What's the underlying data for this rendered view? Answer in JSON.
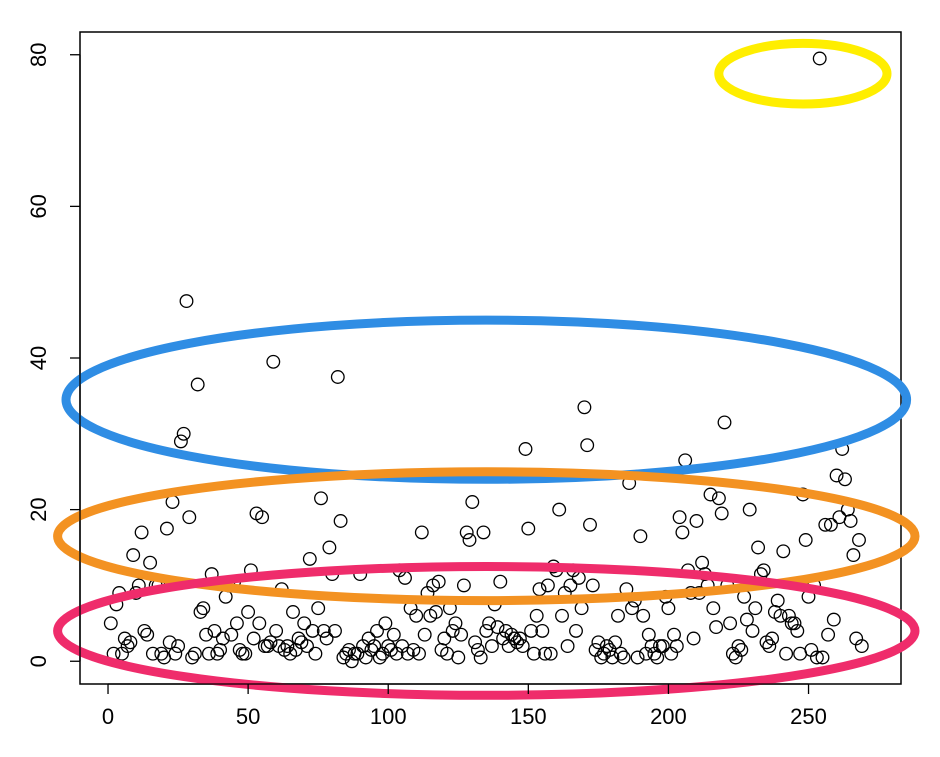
{
  "chart_data": {
    "type": "scatter",
    "title": "",
    "xlabel": "",
    "ylabel": "",
    "xlim": [
      -10,
      283
    ],
    "ylim": [
      -3,
      83
    ],
    "xticks": [
      0,
      50,
      100,
      150,
      200,
      250
    ],
    "xtick_labels": [
      "0",
      "50",
      "100",
      "150",
      "200",
      "250"
    ],
    "yticks": [
      0,
      20,
      40,
      60,
      80
    ],
    "ytick_labels": [
      "0",
      "20",
      "40",
      "60",
      "80"
    ],
    "grid": false,
    "marker": "open-circle",
    "point_color": "#000000",
    "points": [
      [
        1,
        5
      ],
      [
        2,
        1
      ],
      [
        3,
        7.5
      ],
      [
        4,
        9
      ],
      [
        5,
        1
      ],
      [
        6,
        3
      ],
      [
        7,
        2
      ],
      [
        8,
        2.5
      ],
      [
        9,
        14
      ],
      [
        10,
        9
      ],
      [
        11,
        10
      ],
      [
        12,
        17
      ],
      [
        13,
        4
      ],
      [
        14,
        3.5
      ],
      [
        15,
        13
      ],
      [
        16,
        1
      ],
      [
        17,
        10
      ],
      [
        18,
        10
      ],
      [
        19,
        1
      ],
      [
        20,
        0.5
      ],
      [
        21,
        17.5
      ],
      [
        22,
        2.5
      ],
      [
        23,
        21
      ],
      [
        24,
        1
      ],
      [
        25,
        2
      ],
      [
        26,
        29
      ],
      [
        27,
        30
      ],
      [
        28,
        47.5
      ],
      [
        29,
        19
      ],
      [
        30,
        0.5
      ],
      [
        31,
        1
      ],
      [
        32,
        36.5
      ],
      [
        33,
        6.5
      ],
      [
        34,
        7
      ],
      [
        35,
        3.5
      ],
      [
        36,
        1
      ],
      [
        37,
        11.5
      ],
      [
        38,
        4
      ],
      [
        39,
        1
      ],
      [
        40,
        1.5
      ],
      [
        41,
        3
      ],
      [
        42,
        8.5
      ],
      [
        43,
        10
      ],
      [
        44,
        3.5
      ],
      [
        45,
        10.5
      ],
      [
        46,
        5
      ],
      [
        47,
        1.5
      ],
      [
        48,
        1
      ],
      [
        49,
        1
      ],
      [
        50,
        6.5
      ],
      [
        51,
        12
      ],
      [
        52,
        3
      ],
      [
        53,
        19.5
      ],
      [
        54,
        5
      ],
      [
        55,
        19
      ],
      [
        56,
        2
      ],
      [
        57,
        2
      ],
      [
        58,
        2.5
      ],
      [
        59,
        39.5
      ],
      [
        60,
        4
      ],
      [
        61,
        2
      ],
      [
        62,
        9.5
      ],
      [
        63,
        1.5
      ],
      [
        64,
        2
      ],
      [
        65,
        1
      ],
      [
        66,
        6.5
      ],
      [
        67,
        1.5
      ],
      [
        68,
        3
      ],
      [
        69,
        2.5
      ],
      [
        70,
        5
      ],
      [
        71,
        2
      ],
      [
        72,
        13.5
      ],
      [
        73,
        4
      ],
      [
        74,
        1
      ],
      [
        75,
        7
      ],
      [
        76,
        21.5
      ],
      [
        77,
        4
      ],
      [
        78,
        3
      ],
      [
        79,
        15
      ],
      [
        80,
        11.5
      ],
      [
        81,
        4
      ],
      [
        82,
        37.5
      ],
      [
        83,
        18.5
      ],
      [
        84,
        0.5
      ],
      [
        85,
        1
      ],
      [
        86,
        1.5
      ],
      [
        87,
        0
      ],
      [
        88,
        1
      ],
      [
        89,
        1
      ],
      [
        90,
        11.5
      ],
      [
        91,
        2
      ],
      [
        92,
        0.5
      ],
      [
        93,
        3
      ],
      [
        94,
        1.5
      ],
      [
        95,
        2
      ],
      [
        96,
        4
      ],
      [
        97,
        0.5
      ],
      [
        98,
        1
      ],
      [
        99,
        5
      ],
      [
        100,
        2
      ],
      [
        101,
        1.5
      ],
      [
        102,
        3.5
      ],
      [
        103,
        1
      ],
      [
        104,
        12
      ],
      [
        105,
        2
      ],
      [
        106,
        11
      ],
      [
        107,
        1
      ],
      [
        108,
        7
      ],
      [
        109,
        1.5
      ],
      [
        110,
        6
      ],
      [
        111,
        1
      ],
      [
        112,
        17
      ],
      [
        113,
        3.5
      ],
      [
        114,
        9
      ],
      [
        115,
        6
      ],
      [
        116,
        10
      ],
      [
        117,
        6.5
      ],
      [
        118,
        10.5
      ],
      [
        119,
        1.5
      ],
      [
        120,
        3
      ],
      [
        121,
        1
      ],
      [
        122,
        7
      ],
      [
        123,
        4
      ],
      [
        124,
        5
      ],
      [
        125,
        0.5
      ],
      [
        126,
        3.5
      ],
      [
        127,
        10
      ],
      [
        128,
        17
      ],
      [
        129,
        16
      ],
      [
        130,
        21
      ],
      [
        131,
        2.5
      ],
      [
        132,
        1.5
      ],
      [
        133,
        0.5
      ],
      [
        134,
        17
      ],
      [
        135,
        4
      ],
      [
        136,
        5
      ],
      [
        137,
        2
      ],
      [
        138,
        7.5
      ],
      [
        139,
        4.5
      ],
      [
        140,
        10.5
      ],
      [
        141,
        3
      ],
      [
        142,
        4
      ],
      [
        143,
        2
      ],
      [
        144,
        3.5
      ],
      [
        145,
        3
      ],
      [
        146,
        2.5
      ],
      [
        147,
        3
      ],
      [
        148,
        2
      ],
      [
        149,
        28
      ],
      [
        150,
        17.5
      ],
      [
        151,
        4
      ],
      [
        152,
        1
      ],
      [
        153,
        6
      ],
      [
        154,
        9.5
      ],
      [
        155,
        4
      ],
      [
        156,
        1
      ],
      [
        157,
        10
      ],
      [
        158,
        1
      ],
      [
        159,
        12.5
      ],
      [
        160,
        12
      ],
      [
        161,
        20
      ],
      [
        162,
        6
      ],
      [
        163,
        9
      ],
      [
        164,
        2
      ],
      [
        165,
        10
      ],
      [
        166,
        12
      ],
      [
        167,
        4
      ],
      [
        168,
        11
      ],
      [
        169,
        7
      ],
      [
        170,
        33.5
      ],
      [
        171,
        28.5
      ],
      [
        172,
        18
      ],
      [
        173,
        10
      ],
      [
        174,
        1.5
      ],
      [
        175,
        2.5
      ],
      [
        176,
        0.5
      ],
      [
        177,
        1
      ],
      [
        178,
        2
      ],
      [
        179,
        1.5
      ],
      [
        180,
        0.5
      ],
      [
        181,
        2.5
      ],
      [
        182,
        6
      ],
      [
        183,
        1
      ],
      [
        184,
        0.5
      ],
      [
        185,
        9.5
      ],
      [
        186,
        23.5
      ],
      [
        187,
        7
      ],
      [
        188,
        8
      ],
      [
        189,
        0.5
      ],
      [
        190,
        16.5
      ],
      [
        191,
        6
      ],
      [
        192,
        1
      ],
      [
        193,
        3.5
      ],
      [
        194,
        2
      ],
      [
        195,
        1
      ],
      [
        196,
        0.5
      ],
      [
        197,
        2
      ],
      [
        198,
        2
      ],
      [
        199,
        8.5
      ],
      [
        200,
        7
      ],
      [
        201,
        1
      ],
      [
        202,
        3.5
      ],
      [
        203,
        2
      ],
      [
        204,
        19
      ],
      [
        205,
        17
      ],
      [
        206,
        26.5
      ],
      [
        207,
        12
      ],
      [
        208,
        9
      ],
      [
        209,
        3
      ],
      [
        210,
        18.5
      ],
      [
        211,
        9
      ],
      [
        212,
        13
      ],
      [
        213,
        11.5
      ],
      [
        214,
        10
      ],
      [
        215,
        22
      ],
      [
        216,
        7
      ],
      [
        217,
        4.5
      ],
      [
        218,
        21.5
      ],
      [
        219,
        19.5
      ],
      [
        220,
        31.5
      ],
      [
        221,
        10
      ],
      [
        222,
        5
      ],
      [
        223,
        1
      ],
      [
        224,
        0.5
      ],
      [
        225,
        2
      ],
      [
        226,
        1.5
      ],
      [
        227,
        8.5
      ],
      [
        228,
        5.5
      ],
      [
        229,
        20
      ],
      [
        230,
        4
      ],
      [
        231,
        7
      ],
      [
        232,
        15
      ],
      [
        233,
        11.5
      ],
      [
        234,
        12
      ],
      [
        235,
        2.5
      ],
      [
        236,
        2
      ],
      [
        237,
        3
      ],
      [
        238,
        6.5
      ],
      [
        239,
        8
      ],
      [
        240,
        6
      ],
      [
        241,
        14.5
      ],
      [
        242,
        1
      ],
      [
        243,
        6
      ],
      [
        244,
        5
      ],
      [
        245,
        5
      ],
      [
        246,
        4
      ],
      [
        247,
        1
      ],
      [
        248,
        22
      ],
      [
        249,
        16
      ],
      [
        250,
        8.5
      ],
      [
        251,
        1.5
      ],
      [
        252,
        10
      ],
      [
        253,
        0.5
      ],
      [
        254,
        79.5
      ],
      [
        255,
        0.5
      ],
      [
        256,
        18
      ],
      [
        257,
        3.5
      ],
      [
        258,
        18
      ],
      [
        259,
        5.5
      ],
      [
        260,
        24.5
      ],
      [
        261,
        19
      ],
      [
        262,
        28
      ],
      [
        263,
        24
      ],
      [
        264,
        20
      ],
      [
        265,
        18.5
      ],
      [
        266,
        14
      ],
      [
        267,
        3
      ],
      [
        268,
        16
      ],
      [
        269,
        2
      ]
    ],
    "highlight_ellipses": [
      {
        "color": "#ffee00",
        "center": [
          248,
          77.5
        ],
        "radii": [
          30,
          4
        ]
      },
      {
        "color": "#2f8de4",
        "center": [
          135,
          34.5
        ],
        "radii": [
          150,
          10.5
        ]
      },
      {
        "color": "#f39222",
        "center": [
          135,
          16.5
        ],
        "radii": [
          153,
          8.5
        ]
      },
      {
        "color": "#ef2c6b",
        "center": [
          135,
          4
        ],
        "radii": [
          153,
          8.5
        ]
      }
    ]
  }
}
